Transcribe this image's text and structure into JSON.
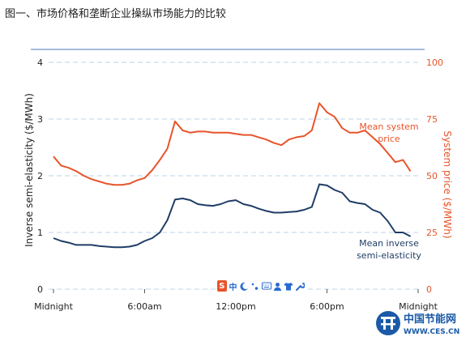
{
  "page": {
    "title": "图一、市场价格和垄断企业操纵市场能力的比较"
  },
  "ime_toolbar": {
    "icons": [
      "sogou-s-icon",
      "chinese-mode-icon",
      "moon-icon",
      "punctuation-icon",
      "keyboard-icon",
      "user-icon",
      "shirt-icon",
      "wrench-icon"
    ],
    "s_glyph": "S",
    "cn_glyph": "中"
  },
  "watermark": {
    "name": "中国节能网",
    "url": "WWW.CES.CN"
  },
  "chart_data": {
    "type": "line",
    "x_ticks": [
      "Midnight",
      "6:00am",
      "12:00pm",
      "6:00pm",
      "Midnight"
    ],
    "left_axis": {
      "label": "Inverse semi-elasticity ($/MWh)",
      "ticks": [
        "0",
        "1",
        "2",
        "3",
        "4"
      ],
      "range": [
        0,
        4
      ]
    },
    "right_axis": {
      "label": "System price ($/MWh)",
      "ticks": [
        "0",
        "25",
        "50",
        "75",
        "100"
      ],
      "range": [
        0,
        100
      ]
    },
    "grid": "horizontal dashed",
    "colors": {
      "price": "#e8542a",
      "elasticity": "#1f3d66",
      "grid": "#c9dce9",
      "top_rule": "#4a7ab5"
    },
    "series": [
      {
        "name": "Mean system price",
        "label_lines": [
          "Mean system",
          "price"
        ],
        "axis": "right",
        "x_hours": [
          0,
          0.5,
          1,
          1.5,
          2,
          2.5,
          3,
          3.5,
          4,
          4.5,
          5,
          5.5,
          6,
          6.5,
          7,
          7.5,
          8,
          8.5,
          9,
          9.5,
          10,
          10.5,
          11,
          11.5,
          12,
          12.5,
          13,
          13.5,
          14,
          14.5,
          15,
          15.5,
          16,
          16.5,
          17,
          17.5,
          18,
          18.5,
          19,
          19.5,
          20,
          20.5,
          21,
          21.5,
          22,
          22.5,
          23,
          23.5
        ],
        "values": [
          58.5,
          54.5,
          53.5,
          52,
          50,
          48.5,
          47.5,
          46.5,
          46,
          46,
          46.5,
          48,
          49,
          52.5,
          57,
          62,
          74,
          70,
          69,
          69.5,
          69.5,
          69,
          69,
          69,
          68.5,
          68,
          68,
          67,
          66,
          64.5,
          63.5,
          66,
          67,
          67.5,
          70,
          82,
          78,
          76,
          71,
          69,
          69,
          70,
          67,
          64,
          60,
          56,
          57,
          52
        ]
      },
      {
        "name": "Mean inverse semi-elasticity",
        "label_lines": [
          "Mean inverse",
          "semi-elasticity"
        ],
        "axis": "left",
        "x_hours": [
          0,
          0.5,
          1,
          1.5,
          2,
          2.5,
          3,
          3.5,
          4,
          4.5,
          5,
          5.5,
          6,
          6.5,
          7,
          7.5,
          8,
          8.5,
          9,
          9.5,
          10,
          10.5,
          11,
          11.5,
          12,
          12.5,
          13,
          13.5,
          14,
          14.5,
          15,
          15.5,
          16,
          16.5,
          17,
          17.5,
          18,
          18.5,
          19,
          19.5,
          20,
          20.5,
          21,
          21.5,
          22,
          22.5,
          23,
          23.5
        ],
        "values": [
          0.9,
          0.85,
          0.82,
          0.78,
          0.78,
          0.78,
          0.76,
          0.75,
          0.74,
          0.74,
          0.75,
          0.78,
          0.85,
          0.9,
          1.0,
          1.22,
          1.58,
          1.6,
          1.57,
          1.5,
          1.48,
          1.47,
          1.5,
          1.55,
          1.57,
          1.5,
          1.47,
          1.42,
          1.38,
          1.35,
          1.35,
          1.36,
          1.37,
          1.4,
          1.45,
          1.85,
          1.83,
          1.75,
          1.7,
          1.55,
          1.52,
          1.5,
          1.4,
          1.35,
          1.2,
          1.0,
          1.0,
          0.93
        ]
      }
    ]
  }
}
